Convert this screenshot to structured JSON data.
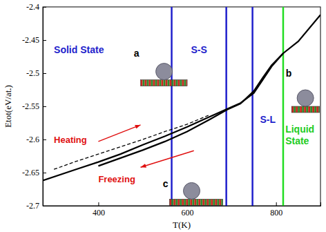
{
  "chart_data": {
    "type": "line",
    "x_label": "T(K)",
    "y_label": "Etot(eV/at.)",
    "xlim": [
      275,
      900
    ],
    "xticks": [
      400,
      600,
      800
    ],
    "ylim": [
      -2.7,
      -2.4
    ],
    "yticks": [
      -2.7,
      -2.65,
      -2.6,
      -2.55,
      -2.5,
      -2.45,
      -2.4
    ],
    "series": [
      {
        "color": "#000000",
        "line_style": "solid",
        "x": [
          275,
          350,
          400,
          450,
          500,
          550,
          600,
          650,
          690,
          720,
          750,
          770,
          790,
          816,
          850,
          900
        ],
        "values": [
          -2.662,
          -2.645,
          -2.634,
          -2.622,
          -2.608,
          -2.595,
          -2.581,
          -2.566,
          -2.554,
          -2.545,
          -2.53,
          -2.51,
          -2.49,
          -2.47,
          -2.452,
          -2.412
        ]
      },
      {
        "color": "#000000",
        "line_style": "solid",
        "x": [
          400,
          450,
          500,
          550,
          600,
          650,
          690,
          720,
          750,
          770,
          790,
          816
        ],
        "values": [
          -2.64,
          -2.628,
          -2.616,
          -2.603,
          -2.588,
          -2.57,
          -2.555,
          -2.546,
          -2.527,
          -2.507,
          -2.488,
          -2.47
        ]
      },
      {
        "color": "#000000",
        "line_style": "dashed",
        "x": [
          300,
          350,
          400,
          450,
          500,
          550,
          600,
          650
        ],
        "values": [
          -2.645,
          -2.633,
          -2.622,
          -2.611,
          -2.6,
          -2.588,
          -2.577,
          -2.563
        ]
      }
    ],
    "vlines": [
      {
        "x": 565,
        "color": "#1f1fcc"
      },
      {
        "x": 688,
        "color": "#1f1fcc"
      },
      {
        "x": 747,
        "color": "#1f1fcc"
      },
      {
        "x": 816,
        "color": "#22dd22"
      }
    ],
    "annotations": {
      "solid": "Solid State",
      "ss": "S-S",
      "sl": "S-L",
      "liquid": "Liquid State",
      "heating": "Heating",
      "freezing": "Freezing",
      "a": "a",
      "b": "b",
      "c": "c"
    }
  }
}
